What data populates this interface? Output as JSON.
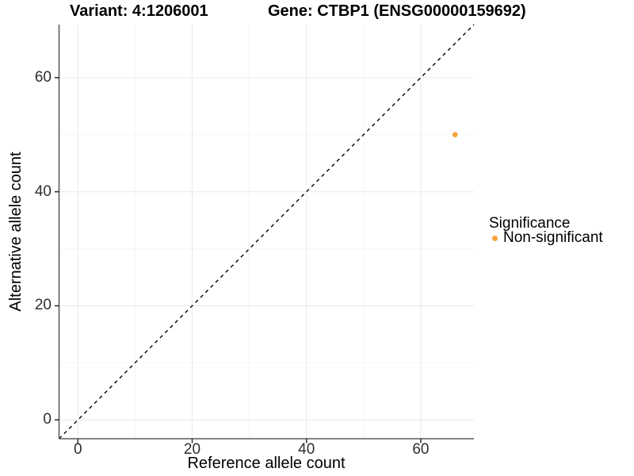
{
  "header": {
    "variant_title": "Variant: 4:1206001",
    "gene_title": "Gene: CTBP1 (ENSG00000159692)"
  },
  "chart_data": {
    "type": "scatter",
    "xlabel": "Reference allele count",
    "ylabel": "Alternative allele count",
    "xlim": [
      -3.3,
      69.3
    ],
    "ylim": [
      -3.3,
      69.3
    ],
    "x_ticks": [
      0,
      20,
      40,
      60
    ],
    "y_ticks": [
      0,
      20,
      40,
      60
    ],
    "x_minor_ticks": [
      10,
      30,
      50
    ],
    "y_minor_ticks": [
      10,
      30,
      50
    ],
    "grid": "on",
    "reference_line": {
      "type": "identity",
      "slope": 1,
      "intercept": 0,
      "style": "dashed"
    },
    "points": [
      {
        "x": 66,
        "y": 50,
        "series": "Non-significant"
      }
    ],
    "legend": {
      "title": "Significance",
      "position": "right",
      "entries": [
        {
          "label": "Non-significant",
          "color": "#F9A33C",
          "marker": "circle"
        }
      ]
    }
  },
  "colors": {
    "background": "#FFFFFF",
    "grid_major": "#EBEBEB",
    "grid_minor": "#F5F5F5",
    "axis_line": "#5B5B5B",
    "tick_mark": "#333333",
    "tick_label": "#2E2E2E",
    "reference_line": "#000000",
    "point": "#F9A33C"
  }
}
